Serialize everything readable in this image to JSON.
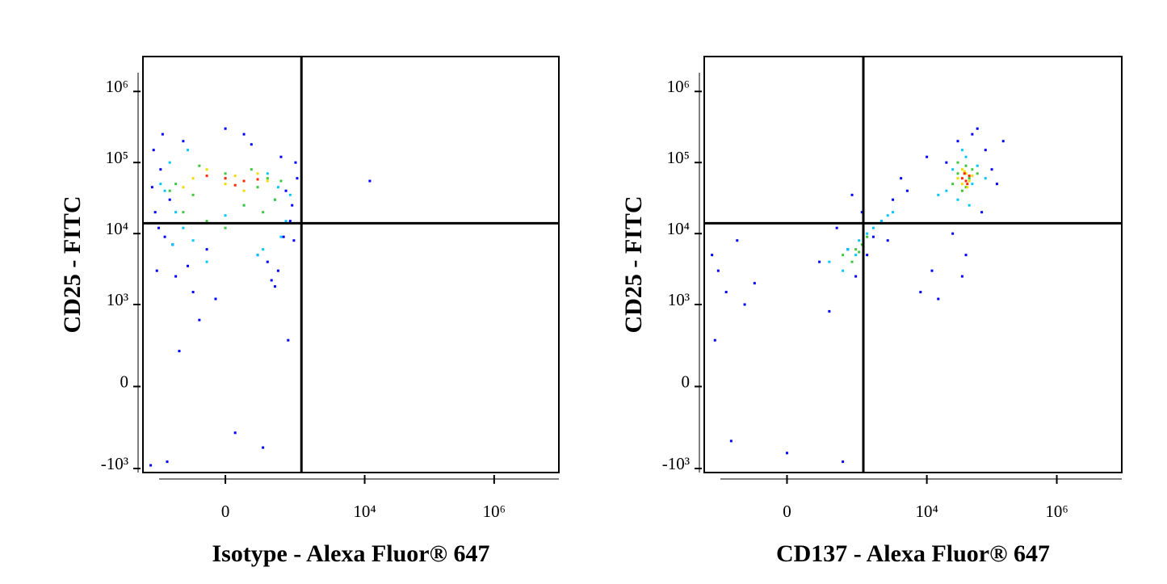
{
  "chart_data": [
    {
      "type": "scatter",
      "xlabel": "Isotype - Alexa Fluor® 647",
      "ylabel": "CD25 - FITC",
      "xlim": [
        -1320,
        10000000
      ],
      "ylim": [
        -1140,
        3100000
      ],
      "xticks": [
        0,
        {
          "value": 10000,
          "label": "10⁴"
        },
        {
          "value": 1000000,
          "label": "10⁶"
        }
      ],
      "yticks": [
        {
          "value": 1000000,
          "label": "10⁶"
        },
        {
          "value": 100000,
          "label": "10⁵"
        },
        {
          "value": 10000,
          "label": "10⁴"
        },
        {
          "value": 1000,
          "label": "10³"
        },
        0,
        {
          "value": -1000,
          "label": "-10³"
        }
      ],
      "quadrant": {
        "x": 1050,
        "y": 14000
      },
      "series": [
        {
          "color": "#0000ff",
          "x": [
            -900,
            -700,
            -500,
            -300,
            -100,
            100,
            300,
            500,
            700,
            900,
            -800,
            -600,
            -400,
            -200,
            0,
            200,
            400,
            600,
            800,
            -850,
            -650,
            -450,
            -250,
            -50,
            150,
            350,
            550,
            750,
            -950,
            -750,
            -150,
            250,
            650,
            850,
            -550,
            450,
            -350,
            50,
            12000,
            -1000
          ],
          "y": [
            150000,
            80000,
            30000,
            200000,
            6000,
            250000,
            4000,
            120000,
            15000,
            60000,
            3000,
            9000,
            2500,
            1500,
            300000,
            5000,
            1800,
            40000,
            8000,
            20000,
            250000,
            7000,
            3500,
            1200,
            180000,
            2200,
            9000,
            25000,
            45000,
            12000,
            600,
            -500,
            300,
            100000,
            -800,
            3000,
            200,
            -300,
            55000,
            -900
          ]
        },
        {
          "color": "#00c8ff",
          "x": [
            -600,
            -400,
            -200,
            0,
            200,
            400,
            600,
            -500,
            -300,
            -100,
            100,
            300,
            500,
            -700,
            700,
            -250,
            250,
            0,
            -450,
            450
          ],
          "y": [
            40000,
            20000,
            8000,
            60000,
            5000,
            30000,
            15000,
            100000,
            12000,
            4000,
            25000,
            70000,
            9000,
            50000,
            35000,
            150000,
            6000,
            18000,
            7000,
            45000
          ]
        },
        {
          "color": "#3cc83c",
          "x": [
            -400,
            -200,
            0,
            200,
            400,
            -300,
            -100,
            100,
            300,
            -500,
            500,
            0,
            -150,
            150,
            250
          ],
          "y": [
            50000,
            35000,
            70000,
            45000,
            30000,
            20000,
            15000,
            25000,
            60000,
            40000,
            55000,
            12000,
            90000,
            80000,
            20000
          ]
        },
        {
          "color": "#f0dc00",
          "x": [
            -200,
            0,
            200,
            -100,
            100,
            300,
            -300,
            50
          ],
          "y": [
            60000,
            50000,
            70000,
            80000,
            40000,
            55000,
            45000,
            65000
          ]
        },
        {
          "color": "#ff2800",
          "x": [
            0,
            100,
            -100,
            200,
            50
          ],
          "y": [
            60000,
            55000,
            65000,
            58000,
            48000
          ]
        }
      ]
    },
    {
      "type": "scatter",
      "xlabel": "CD137 - Alexa Fluor® 647",
      "ylabel": "CD25 - FITC",
      "xlim": [
        -1320,
        10000000
      ],
      "ylim": [
        -1140,
        3100000
      ],
      "xticks": [
        0,
        {
          "value": 10000,
          "label": "10⁴"
        },
        {
          "value": 1000000,
          "label": "10⁶"
        }
      ],
      "yticks": [
        {
          "value": 1000000,
          "label": "10⁶"
        },
        {
          "value": 100000,
          "label": "10⁵"
        },
        {
          "value": 10000,
          "label": "10⁴"
        },
        {
          "value": 1000,
          "label": "10³"
        },
        0,
        {
          "value": -1000,
          "label": "-10³"
        }
      ],
      "quadrant": {
        "x": 1050,
        "y": 14000
      },
      "series": [
        {
          "color": "#0000ff",
          "x": [
            -1000,
            -800,
            -600,
            -400,
            -200,
            0,
            200,
            400,
            600,
            800,
            1000,
            1500,
            2000,
            3000,
            5000,
            8000,
            12000,
            20000,
            30000,
            50000,
            80000,
            100000,
            150000,
            -900,
            -500,
            300,
            700,
            1200,
            2500,
            4000,
            15000,
            25000,
            40000,
            60000,
            120000,
            -300,
            500,
            10000,
            35000,
            70000
          ],
          "y": [
            5000,
            3000,
            1500,
            8000,
            2000,
            -600,
            4000,
            12000,
            6000,
            2500,
            20000,
            9000,
            15000,
            30000,
            40000,
            1500,
            3000,
            100000,
            200000,
            250000,
            150000,
            80000,
            200000,
            300,
            -400,
            800,
            35000,
            5000,
            8000,
            60000,
            1200,
            10000,
            5000,
            300000,
            50000,
            1000,
            -800,
            120000,
            2500,
            20000
          ]
        },
        {
          "color": "#00c8ff",
          "x": [
            300,
            600,
            900,
            1200,
            1500,
            2000,
            500,
            800,
            2500,
            3000,
            20000,
            25000,
            30000,
            40000,
            50000,
            60000,
            35000,
            45000,
            80000,
            15000
          ],
          "y": [
            4000,
            6000,
            8000,
            10000,
            12000,
            15000,
            3000,
            5000,
            18000,
            20000,
            40000,
            80000,
            30000,
            120000,
            50000,
            90000,
            150000,
            25000,
            60000,
            35000
          ]
        },
        {
          "color": "#3cc83c",
          "x": [
            500,
            800,
            1000,
            1200,
            700,
            900,
            25000,
            30000,
            35000,
            40000,
            45000,
            50000,
            30000,
            40000,
            60000
          ],
          "y": [
            5000,
            6000,
            7000,
            9000,
            4000,
            5500,
            50000,
            70000,
            40000,
            90000,
            60000,
            80000,
            100000,
            45000,
            70000
          ]
        },
        {
          "color": "#f0dc00",
          "x": [
            30000,
            35000,
            40000,
            45000,
            50000,
            35000,
            42000,
            38000
          ],
          "y": [
            60000,
            50000,
            70000,
            55000,
            65000,
            80000,
            45000,
            75000
          ]
        },
        {
          "color": "#ff2800",
          "x": [
            35000,
            40000,
            45000,
            38000,
            42000
          ],
          "y": [
            60000,
            55000,
            65000,
            70000,
            50000
          ]
        }
      ]
    }
  ]
}
